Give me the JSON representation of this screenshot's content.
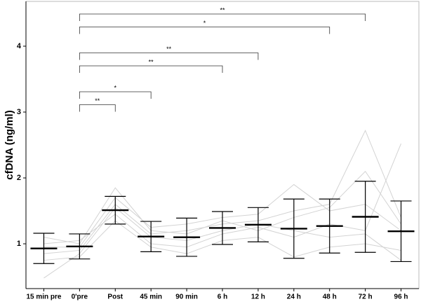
{
  "chart_data": {
    "type": "errorbar",
    "y_label": "cfDNA (ng/ml)",
    "categories": [
      "15 min pre",
      "0'pre",
      "Post",
      "45 min",
      "90 min",
      "6 h",
      "12 h",
      "24 h",
      "48 h",
      "72 h",
      "96 h"
    ],
    "values": [
      0.93,
      0.96,
      1.51,
      1.11,
      1.1,
      1.24,
      1.29,
      1.23,
      1.27,
      1.41,
      1.19
    ],
    "errors": [
      0.23,
      0.19,
      0.21,
      0.23,
      0.29,
      0.25,
      0.26,
      0.45,
      0.41,
      0.54,
      0.46
    ],
    "color": "#000000",
    "series": [
      {
        "color": "#d3d3d3",
        "values": [
          0.85,
          0.9,
          1.6,
          1.15,
          1.2,
          1.3,
          1.35,
          1.5,
          1.6,
          2.72,
          1.4
        ]
      },
      {
        "color": "#d3d3d3",
        "values": [
          1.0,
          1.05,
          1.45,
          1.0,
          0.95,
          1.15,
          1.25,
          1.1,
          1.3,
          1.2,
          2.52
        ]
      },
      {
        "color": "#d3d3d3",
        "values": [
          0.75,
          0.8,
          1.35,
          0.95,
          0.85,
          1.05,
          1.1,
          0.8,
          0.95,
          1.0,
          0.9
        ]
      },
      {
        "color": "#d3d3d3",
        "values": [
          0.95,
          0.95,
          1.7,
          1.25,
          1.3,
          1.4,
          1.45,
          1.9,
          1.5,
          1.6,
          1.2
        ]
      },
      {
        "color": "#d3d3d3",
        "values": [
          0.48,
          0.85,
          1.55,
          1.1,
          1.05,
          1.2,
          1.3,
          1.2,
          1.1,
          1.15,
          0.75
        ]
      },
      {
        "color": "#d3d3d3",
        "values": [
          1.1,
          1.0,
          1.85,
          1.2,
          1.15,
          1.35,
          1.2,
          1.4,
          1.55,
          2.1,
          1.3
        ]
      }
    ],
    "ylim": [
      0.32,
      4.68
    ],
    "yticks": [
      1,
      2,
      3,
      4
    ],
    "significance": [
      {
        "from": 1,
        "to": 2,
        "label": "**"
      },
      {
        "from": 1,
        "to": 3,
        "label": "*"
      },
      {
        "from": 1,
        "to": 5,
        "label": "**"
      },
      {
        "from": 1,
        "to": 6,
        "label": "**"
      },
      {
        "from": 1,
        "to": 8,
        "label": "*"
      },
      {
        "from": 1,
        "to": 9,
        "label": "**"
      }
    ]
  }
}
